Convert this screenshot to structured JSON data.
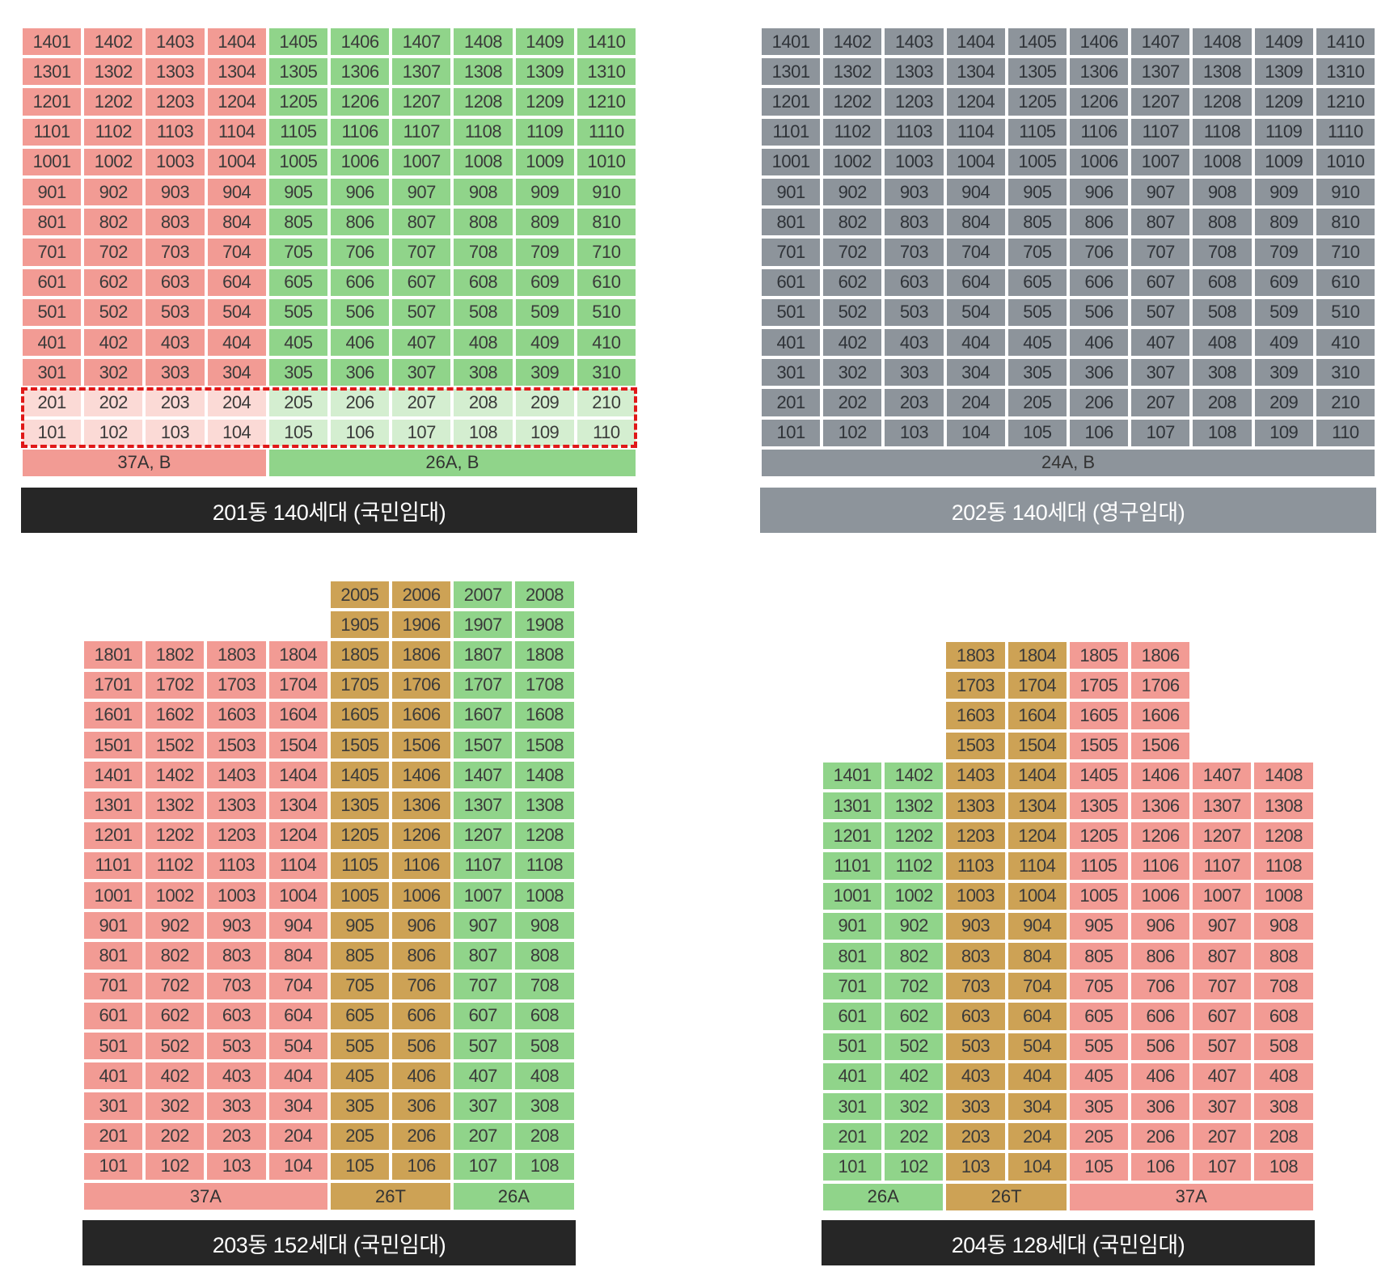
{
  "colors": {
    "red": "#f29b94",
    "green": "#90d48a",
    "gold": "#cda255",
    "gray": "#8d949b",
    "title_dark": "#262626",
    "highlight": "#e01818"
  },
  "buildings": [
    {
      "id": "b201",
      "title": "201동 140세대 (국민임대)",
      "title_style": "dark",
      "units_per_floor": 10,
      "floors": [
        [
          1,
          14,
          1,
          10
        ]
      ],
      "color_ranges": [
        [
          1,
          4,
          "red"
        ],
        [
          5,
          10,
          "green"
        ]
      ],
      "highlight_floors": [
        1,
        2
      ],
      "types": [
        {
          "label": "37A, B",
          "cols": [
            1,
            4
          ],
          "color": "red"
        },
        {
          "label": "26A, B",
          "cols": [
            5,
            10
          ],
          "color": "green"
        }
      ]
    },
    {
      "id": "b202",
      "title": "202동 140세대 (영구임대)",
      "title_style": "gray",
      "units_per_floor": 10,
      "floors": [
        [
          1,
          14,
          1,
          10
        ]
      ],
      "color_ranges": [
        [
          1,
          10,
          "gray"
        ]
      ],
      "highlight_floors": [],
      "types": [
        {
          "label": "24A, B",
          "cols": [
            1,
            10
          ],
          "color": "gray"
        }
      ]
    },
    {
      "id": "b203",
      "title": "203동 152세대 (국민임대)",
      "title_style": "dark",
      "units_per_floor": 8,
      "floors": [
        [
          1,
          18,
          1,
          8
        ],
        [
          19,
          20,
          5,
          8
        ]
      ],
      "color_ranges": [
        [
          1,
          4,
          "red"
        ],
        [
          5,
          6,
          "gold"
        ],
        [
          7,
          8,
          "green"
        ]
      ],
      "highlight_floors": [],
      "types": [
        {
          "label": "37A",
          "cols": [
            1,
            4
          ],
          "color": "red"
        },
        {
          "label": "26T",
          "cols": [
            5,
            6
          ],
          "color": "gold"
        },
        {
          "label": "26A",
          "cols": [
            7,
            8
          ],
          "color": "green"
        }
      ]
    },
    {
      "id": "b204",
      "title": "204동 128세대 (국민임대)",
      "title_style": "dark",
      "units_per_floor": 8,
      "floors": [
        [
          1,
          14,
          1,
          8
        ],
        [
          15,
          18,
          3,
          6
        ]
      ],
      "color_ranges": [
        [
          1,
          2,
          "green"
        ],
        [
          3,
          4,
          "gold"
        ],
        [
          5,
          8,
          "red"
        ]
      ],
      "highlight_floors": [],
      "types": [
        {
          "label": "26A",
          "cols": [
            1,
            2
          ],
          "color": "green"
        },
        {
          "label": "26T",
          "cols": [
            3,
            4
          ],
          "color": "gold"
        },
        {
          "label": "37A",
          "cols": [
            5,
            8
          ],
          "color": "red"
        }
      ]
    }
  ]
}
